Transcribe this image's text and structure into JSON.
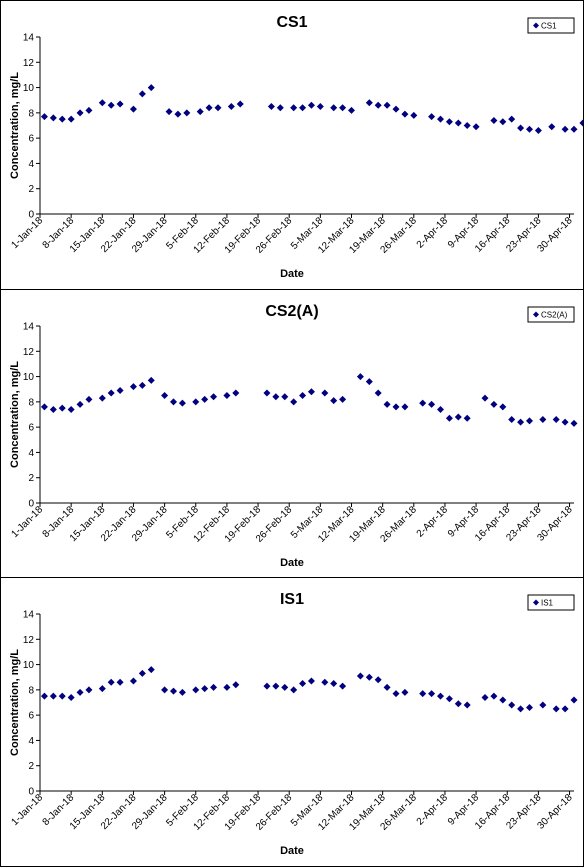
{
  "chart_data": [
    {
      "type": "scatter",
      "title": "CS1",
      "xlabel": "Date",
      "ylabel": "Concentration, mg/L",
      "ylim": [
        0,
        14
      ],
      "yticks": [
        0,
        2,
        4,
        6,
        8,
        10,
        12,
        14
      ],
      "xlim": [
        "1-Jan-18",
        "1-May-18"
      ],
      "x_tick_labels": [
        "1-Jan-18",
        "8-Jan-18",
        "15-Jan-18",
        "22-Jan-18",
        "29-Jan-18",
        "5-Feb-18",
        "12-Feb-18",
        "19-Feb-18",
        "26-Feb-18",
        "5-Mar-18",
        "12-Mar-18",
        "19-Mar-18",
        "26-Mar-18",
        "2-Apr-18",
        "9-Apr-18",
        "16-Apr-18",
        "23-Apr-18",
        "30-Apr-18"
      ],
      "legend_position": "top-right",
      "grid": false,
      "series": [
        {
          "name": "CS1",
          "color": "#000080",
          "marker": "diamond",
          "points": [
            [
              "2018-01-02",
              7.7
            ],
            [
              "2018-01-04",
              7.6
            ],
            [
              "2018-01-06",
              7.5
            ],
            [
              "2018-01-08",
              7.5
            ],
            [
              "2018-01-10",
              8.0
            ],
            [
              "2018-01-12",
              8.2
            ],
            [
              "2018-01-15",
              8.8
            ],
            [
              "2018-01-17",
              8.6
            ],
            [
              "2018-01-19",
              8.7
            ],
            [
              "2018-01-22",
              8.3
            ],
            [
              "2018-01-24",
              9.5
            ],
            [
              "2018-01-26",
              10.0
            ],
            [
              "2018-01-30",
              8.1
            ],
            [
              "2018-02-01",
              7.9
            ],
            [
              "2018-02-03",
              8.0
            ],
            [
              "2018-02-06",
              8.1
            ],
            [
              "2018-02-08",
              8.4
            ],
            [
              "2018-02-10",
              8.4
            ],
            [
              "2018-02-13",
              8.5
            ],
            [
              "2018-02-15",
              8.7
            ],
            [
              "2018-02-22",
              8.5
            ],
            [
              "2018-02-24",
              8.4
            ],
            [
              "2018-02-27",
              8.4
            ],
            [
              "2018-03-01",
              8.4
            ],
            [
              "2018-03-03",
              8.6
            ],
            [
              "2018-03-05",
              8.5
            ],
            [
              "2018-03-08",
              8.4
            ],
            [
              "2018-03-10",
              8.4
            ],
            [
              "2018-03-12",
              8.2
            ],
            [
              "2018-03-16",
              8.8
            ],
            [
              "2018-03-18",
              8.6
            ],
            [
              "2018-03-20",
              8.6
            ],
            [
              "2018-03-22",
              8.3
            ],
            [
              "2018-03-24",
              7.9
            ],
            [
              "2018-03-26",
              7.8
            ],
            [
              "2018-03-30",
              7.7
            ],
            [
              "2018-04-01",
              7.5
            ],
            [
              "2018-04-03",
              7.3
            ],
            [
              "2018-04-05",
              7.2
            ],
            [
              "2018-04-07",
              7.0
            ],
            [
              "2018-04-09",
              6.9
            ],
            [
              "2018-04-13",
              7.4
            ],
            [
              "2018-04-15",
              7.3
            ],
            [
              "2018-04-17",
              7.5
            ],
            [
              "2018-04-19",
              6.8
            ],
            [
              "2018-04-21",
              6.7
            ],
            [
              "2018-04-23",
              6.6
            ],
            [
              "2018-04-26",
              6.9
            ],
            [
              "2018-04-29",
              6.7
            ],
            [
              "2018-05-01",
              6.7
            ],
            [
              "2018-05-03",
              7.2
            ]
          ]
        }
      ]
    },
    {
      "type": "scatter",
      "title": "CS2(A)",
      "xlabel": "Date",
      "ylabel": "Concentration, mg/L",
      "ylim": [
        0,
        14
      ],
      "yticks": [
        0,
        2,
        4,
        6,
        8,
        10,
        12,
        14
      ],
      "xlim": [
        "1-Jan-18",
        "1-May-18"
      ],
      "x_tick_labels": [
        "1-Jan-18",
        "8-Jan-18",
        "15-Jan-18",
        "22-Jan-18",
        "29-Jan-18",
        "5-Feb-18",
        "12-Feb-18",
        "19-Feb-18",
        "26-Feb-18",
        "5-Mar-18",
        "12-Mar-18",
        "19-Mar-18",
        "26-Mar-18",
        "2-Apr-18",
        "9-Apr-18",
        "16-Apr-18",
        "23-Apr-18",
        "30-Apr-18"
      ],
      "legend_position": "top-right",
      "grid": false,
      "series": [
        {
          "name": "CS2(A)",
          "color": "#000080",
          "marker": "diamond",
          "points": [
            [
              "2018-01-02",
              7.6
            ],
            [
              "2018-01-04",
              7.4
            ],
            [
              "2018-01-06",
              7.5
            ],
            [
              "2018-01-08",
              7.4
            ],
            [
              "2018-01-10",
              7.8
            ],
            [
              "2018-01-12",
              8.2
            ],
            [
              "2018-01-15",
              8.3
            ],
            [
              "2018-01-17",
              8.7
            ],
            [
              "2018-01-19",
              8.9
            ],
            [
              "2018-01-22",
              9.2
            ],
            [
              "2018-01-24",
              9.3
            ],
            [
              "2018-01-26",
              9.7
            ],
            [
              "2018-01-29",
              8.5
            ],
            [
              "2018-01-31",
              8.0
            ],
            [
              "2018-02-02",
              7.9
            ],
            [
              "2018-02-05",
              8.0
            ],
            [
              "2018-02-07",
              8.2
            ],
            [
              "2018-02-09",
              8.4
            ],
            [
              "2018-02-12",
              8.5
            ],
            [
              "2018-02-14",
              8.7
            ],
            [
              "2018-02-21",
              8.7
            ],
            [
              "2018-02-23",
              8.4
            ],
            [
              "2018-02-25",
              8.4
            ],
            [
              "2018-02-27",
              8.0
            ],
            [
              "2018-03-01",
              8.5
            ],
            [
              "2018-03-03",
              8.8
            ],
            [
              "2018-03-06",
              8.7
            ],
            [
              "2018-03-08",
              8.1
            ],
            [
              "2018-03-10",
              8.2
            ],
            [
              "2018-03-14",
              10.0
            ],
            [
              "2018-03-16",
              9.6
            ],
            [
              "2018-03-18",
              8.7
            ],
            [
              "2018-03-20",
              7.8
            ],
            [
              "2018-03-22",
              7.6
            ],
            [
              "2018-03-24",
              7.6
            ],
            [
              "2018-03-28",
              7.9
            ],
            [
              "2018-03-30",
              7.8
            ],
            [
              "2018-04-01",
              7.4
            ],
            [
              "2018-04-03",
              6.7
            ],
            [
              "2018-04-05",
              6.8
            ],
            [
              "2018-04-07",
              6.7
            ],
            [
              "2018-04-11",
              8.3
            ],
            [
              "2018-04-13",
              7.8
            ],
            [
              "2018-04-15",
              7.6
            ],
            [
              "2018-04-17",
              6.6
            ],
            [
              "2018-04-19",
              6.4
            ],
            [
              "2018-04-21",
              6.5
            ],
            [
              "2018-04-24",
              6.6
            ],
            [
              "2018-04-27",
              6.6
            ],
            [
              "2018-04-29",
              6.4
            ],
            [
              "2018-05-01",
              6.3
            ]
          ]
        }
      ]
    },
    {
      "type": "scatter",
      "title": "IS1",
      "xlabel": "Date",
      "ylabel": "Concentration, mg/L",
      "ylim": [
        0,
        14
      ],
      "yticks": [
        0,
        2,
        4,
        6,
        8,
        10,
        12,
        14
      ],
      "xlim": [
        "1-Jan-18",
        "1-May-18"
      ],
      "x_tick_labels": [
        "1-Jan-18",
        "8-Jan-18",
        "15-Jan-18",
        "22-Jan-18",
        "29-Jan-18",
        "5-Feb-18",
        "12-Feb-18",
        "19-Feb-18",
        "26-Feb-18",
        "5-Mar-18",
        "12-Mar-18",
        "19-Mar-18",
        "26-Mar-18",
        "2-Apr-18",
        "9-Apr-18",
        "16-Apr-18",
        "23-Apr-18",
        "30-Apr-18"
      ],
      "legend_position": "top-right",
      "grid": false,
      "series": [
        {
          "name": "IS1",
          "color": "#000080",
          "marker": "diamond",
          "points": [
            [
              "2018-01-02",
              7.5
            ],
            [
              "2018-01-04",
              7.5
            ],
            [
              "2018-01-06",
              7.5
            ],
            [
              "2018-01-08",
              7.4
            ],
            [
              "2018-01-10",
              7.8
            ],
            [
              "2018-01-12",
              8.0
            ],
            [
              "2018-01-15",
              8.1
            ],
            [
              "2018-01-17",
              8.6
            ],
            [
              "2018-01-19",
              8.6
            ],
            [
              "2018-01-22",
              8.7
            ],
            [
              "2018-01-24",
              9.3
            ],
            [
              "2018-01-26",
              9.6
            ],
            [
              "2018-01-29",
              8.0
            ],
            [
              "2018-01-31",
              7.9
            ],
            [
              "2018-02-02",
              7.8
            ],
            [
              "2018-02-05",
              8.0
            ],
            [
              "2018-02-07",
              8.1
            ],
            [
              "2018-02-09",
              8.2
            ],
            [
              "2018-02-12",
              8.2
            ],
            [
              "2018-02-14",
              8.4
            ],
            [
              "2018-02-21",
              8.3
            ],
            [
              "2018-02-23",
              8.3
            ],
            [
              "2018-02-25",
              8.2
            ],
            [
              "2018-02-27",
              8.0
            ],
            [
              "2018-03-01",
              8.5
            ],
            [
              "2018-03-03",
              8.7
            ],
            [
              "2018-03-06",
              8.6
            ],
            [
              "2018-03-08",
              8.5
            ],
            [
              "2018-03-10",
              8.3
            ],
            [
              "2018-03-14",
              9.1
            ],
            [
              "2018-03-16",
              9.0
            ],
            [
              "2018-03-18",
              8.8
            ],
            [
              "2018-03-20",
              8.2
            ],
            [
              "2018-03-22",
              7.7
            ],
            [
              "2018-03-24",
              7.8
            ],
            [
              "2018-03-28",
              7.7
            ],
            [
              "2018-03-30",
              7.7
            ],
            [
              "2018-04-01",
              7.5
            ],
            [
              "2018-04-03",
              7.3
            ],
            [
              "2018-04-05",
              6.9
            ],
            [
              "2018-04-07",
              6.8
            ],
            [
              "2018-04-11",
              7.4
            ],
            [
              "2018-04-13",
              7.5
            ],
            [
              "2018-04-15",
              7.2
            ],
            [
              "2018-04-17",
              6.8
            ],
            [
              "2018-04-19",
              6.5
            ],
            [
              "2018-04-21",
              6.6
            ],
            [
              "2018-04-24",
              6.8
            ],
            [
              "2018-04-27",
              6.5
            ],
            [
              "2018-04-29",
              6.5
            ],
            [
              "2018-05-01",
              7.2
            ]
          ]
        }
      ]
    }
  ]
}
